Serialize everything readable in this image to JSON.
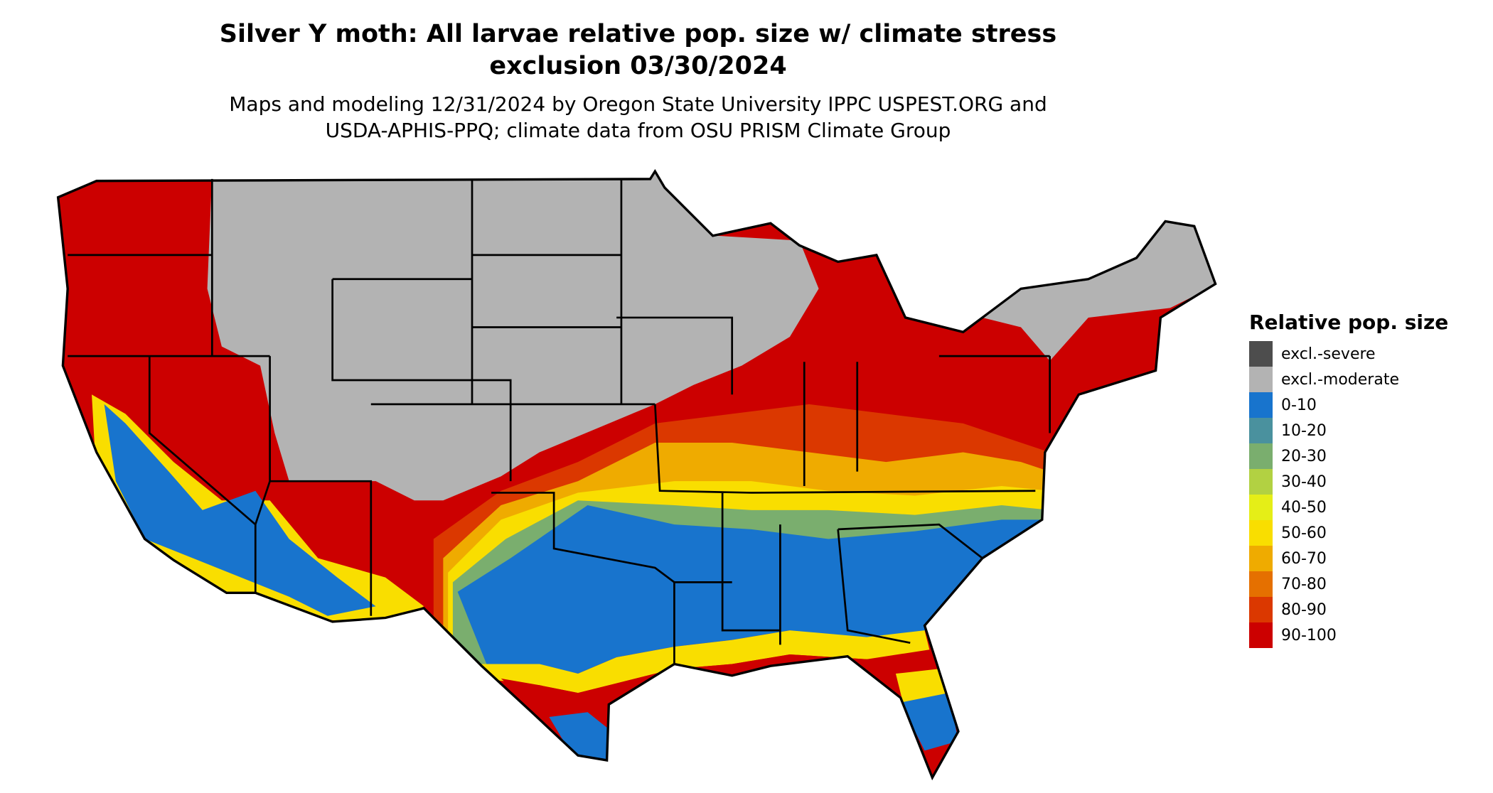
{
  "header": {
    "title_line1": "Silver Y moth: All larvae relative pop. size w/ climate stress",
    "title_line2": "exclusion 03/30/2024",
    "subtitle_line1": "Maps and modeling 12/31/2024 by Oregon State University IPPC USPEST.ORG and",
    "subtitle_line2": "USDA-APHIS-PPQ; climate data from OSU PRISM Climate Group"
  },
  "legend": {
    "title": "Relative pop. size",
    "items": [
      {
        "label": "excl.-severe",
        "color": "#4d4d4d"
      },
      {
        "label": "excl.-moderate",
        "color": "#b3b3b3"
      },
      {
        "label": "0-10",
        "color": "#1874cd"
      },
      {
        "label": "10-20",
        "color": "#4a919e"
      },
      {
        "label": "20-30",
        "color": "#7aae6e"
      },
      {
        "label": "30-40",
        "color": "#b2d142"
      },
      {
        "label": "40-50",
        "color": "#e5ee17"
      },
      {
        "label": "50-60",
        "color": "#f9de00"
      },
      {
        "label": "60-70",
        "color": "#efab00"
      },
      {
        "label": "70-80",
        "color": "#e57000"
      },
      {
        "label": "80-90",
        "color": "#db3800"
      },
      {
        "label": "90-100",
        "color": "#cc0000"
      }
    ]
  },
  "chart_data": {
    "type": "heatmap",
    "title": "Silver Y moth: All larvae relative pop. size w/ climate stress exclusion 03/30/2024",
    "region": "Contiguous United States",
    "legend_title": "Relative pop. size",
    "categories": [
      "excl.-severe",
      "excl.-moderate",
      "0-10",
      "10-20",
      "20-30",
      "30-40",
      "40-50",
      "50-60",
      "60-70",
      "70-80",
      "80-90",
      "90-100"
    ],
    "legend_placement": "right"
  }
}
